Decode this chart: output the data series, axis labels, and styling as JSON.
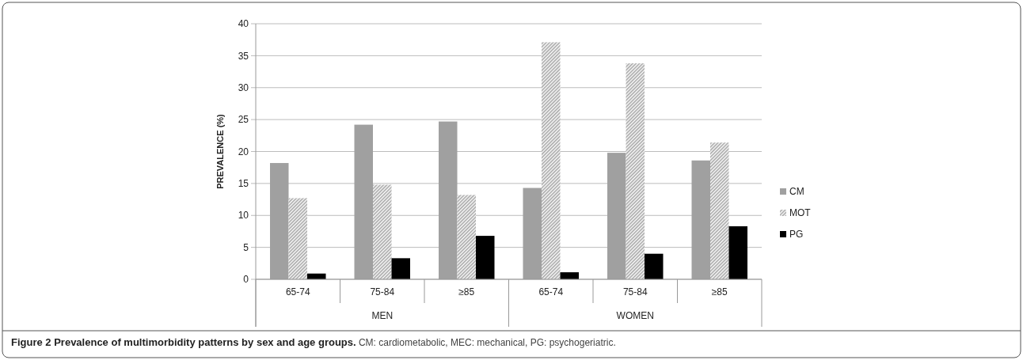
{
  "chart_data": {
    "type": "bar",
    "title": "Figure 2 Prevalence of multimorbidity patterns by sex and age groups.",
    "subtitle": "CM: cardiometabolic, MEC: mechanical, PG: psychogeriatric.",
    "ylabel": "PREVALENCE (%)",
    "categories": [
      "65-74",
      "75-84",
      "≥85",
      "65-74",
      "75-84",
      "≥85"
    ],
    "annotations": [
      "MEN",
      "WOMEN"
    ],
    "series": [
      {
        "name": "CM",
        "color": "#a0a0a0",
        "values": [
          18.2,
          24.2,
          24.7,
          14.3,
          19.8,
          18.6
        ]
      },
      {
        "name": "MOT",
        "color": "#a6a6a6",
        "values": [
          12.7,
          14.8,
          13.2,
          37.1,
          33.8,
          21.4
        ]
      },
      {
        "name": "PG",
        "color": "#000000",
        "values": [
          0.9,
          3.3,
          6.8,
          1.1,
          4.0,
          8.3
        ]
      }
    ],
    "ylim": [
      0,
      40
    ],
    "yticks": [
      0,
      5,
      10,
      15,
      20,
      25,
      30,
      35,
      40
    ],
    "grid": "y",
    "legend": "right"
  }
}
